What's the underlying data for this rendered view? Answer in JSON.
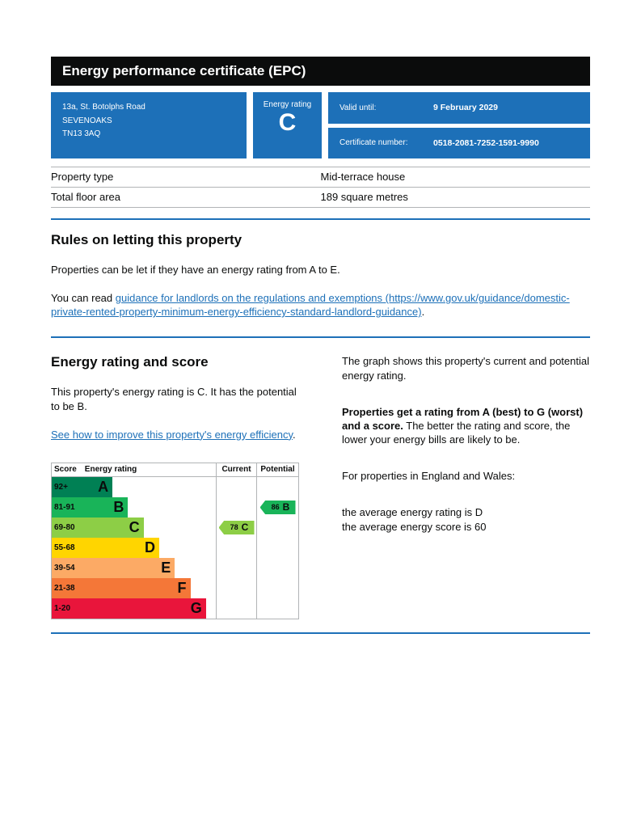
{
  "header": {
    "title": "Energy performance certificate (EPC)"
  },
  "summary": {
    "address": {
      "line1": "13a, St. Botolphs Road",
      "line2": "SEVENOAKS",
      "line3": "TN13 3AQ"
    },
    "rating_badge": {
      "label": "Energy rating",
      "value": "C"
    },
    "valid_until": {
      "label": "Valid until:",
      "value": "9 February 2029"
    },
    "certificate_number": {
      "label": "Certificate number:",
      "value": "0518-2081-7252-1591-9990"
    }
  },
  "property_details": {
    "rows": [
      {
        "label": "Property type",
        "value": "Mid-terrace house"
      },
      {
        "label": "Total floor area",
        "value": "189 square metres"
      }
    ]
  },
  "rules": {
    "heading": "Rules on letting this property",
    "para1": "Properties can be let if they have an energy rating from A to E.",
    "para2_prefix": "You can read ",
    "para2_link": "guidance for landlords on the regulations and exemptions (https://www.gov.uk/guidance/domestic-private-rented-property-minimum-energy-efficiency-standard-landlord-guidance)",
    "para2_suffix": "."
  },
  "rating_section": {
    "heading": "Energy rating and score",
    "intro": "This property's energy rating is C. It has the potential to be B.",
    "improve_link": "See how to improve this property's energy efficiency",
    "improve_suffix": ".",
    "graph_para": "The graph shows this property's current and potential energy rating.",
    "ratings_bold": "Properties get a rating from A (best) to G (worst) and a score.",
    "ratings_rest": " The better the rating and score, the lower your energy bills are likely to be.",
    "region_para": "For properties in England and Wales:",
    "average_rating_line": "the average energy rating is D",
    "average_score_line": "the average energy score is 60"
  },
  "chart_data": {
    "type": "epc-rating-bands",
    "headers": {
      "score": "Score",
      "rating": "Energy rating",
      "current": "Current",
      "potential": "Potential"
    },
    "bands": [
      {
        "score": "92+",
        "letter": "A",
        "color": "#008054"
      },
      {
        "score": "81-91",
        "letter": "B",
        "color": "#19b459"
      },
      {
        "score": "69-80",
        "letter": "C",
        "color": "#8dce46"
      },
      {
        "score": "55-68",
        "letter": "D",
        "color": "#ffd500"
      },
      {
        "score": "39-54",
        "letter": "E",
        "color": "#fcaa65"
      },
      {
        "score": "21-38",
        "letter": "F",
        "color": "#f47738"
      },
      {
        "score": "1-20",
        "letter": "G",
        "color": "#e9153b"
      }
    ],
    "current": {
      "score": 78,
      "letter": "C",
      "band_index": 2,
      "color": "#8dce46"
    },
    "potential": {
      "score": 86,
      "letter": "B",
      "band_index": 1,
      "color": "#19b459"
    }
  },
  "colors": {
    "brand_blue": "#1d70b8",
    "header_bg": "#0b0c0c",
    "text": "#0b0c0c",
    "border": "#b1b4b6",
    "link": "#1d70b8"
  }
}
